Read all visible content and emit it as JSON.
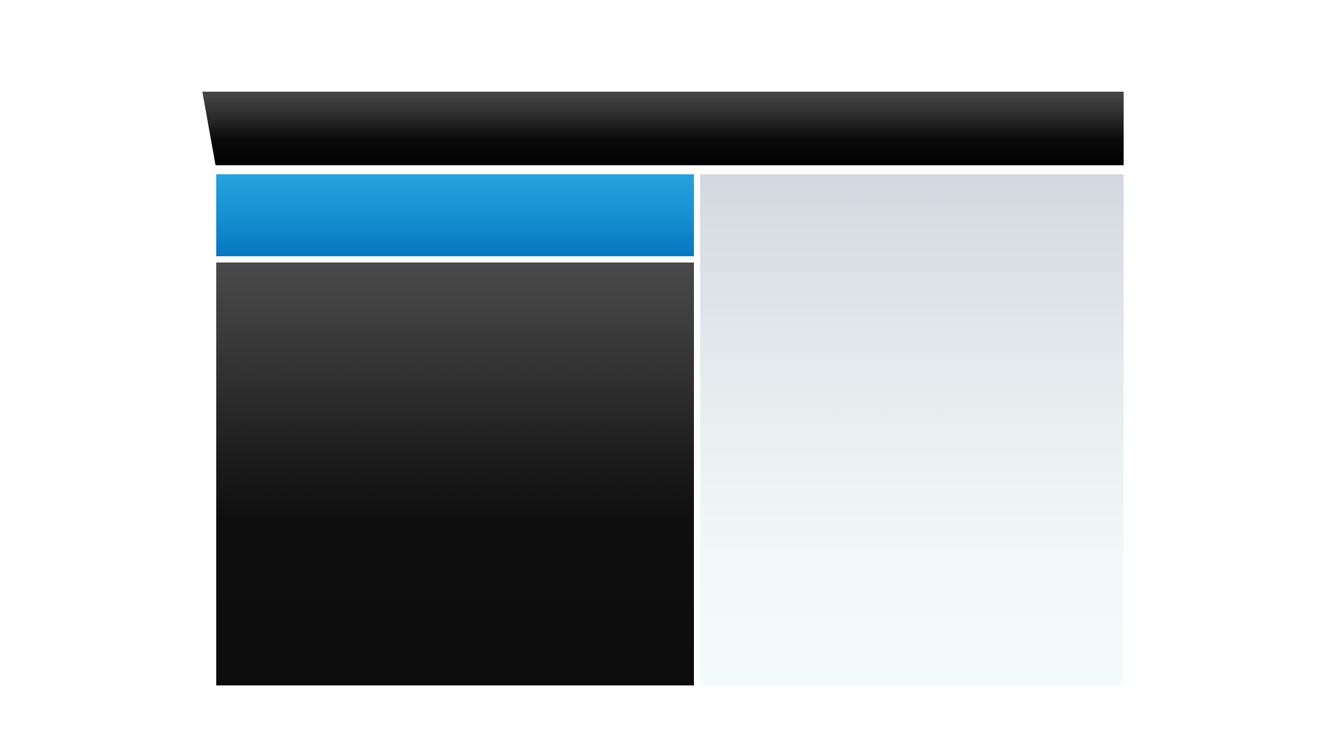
{
  "colors": {
    "page_background": "#ffffff",
    "title_bar": "#000000",
    "banner_panel": "#0676c0",
    "dark_panel": "#0c0c0c",
    "light_panel": "#e9f0f1"
  }
}
